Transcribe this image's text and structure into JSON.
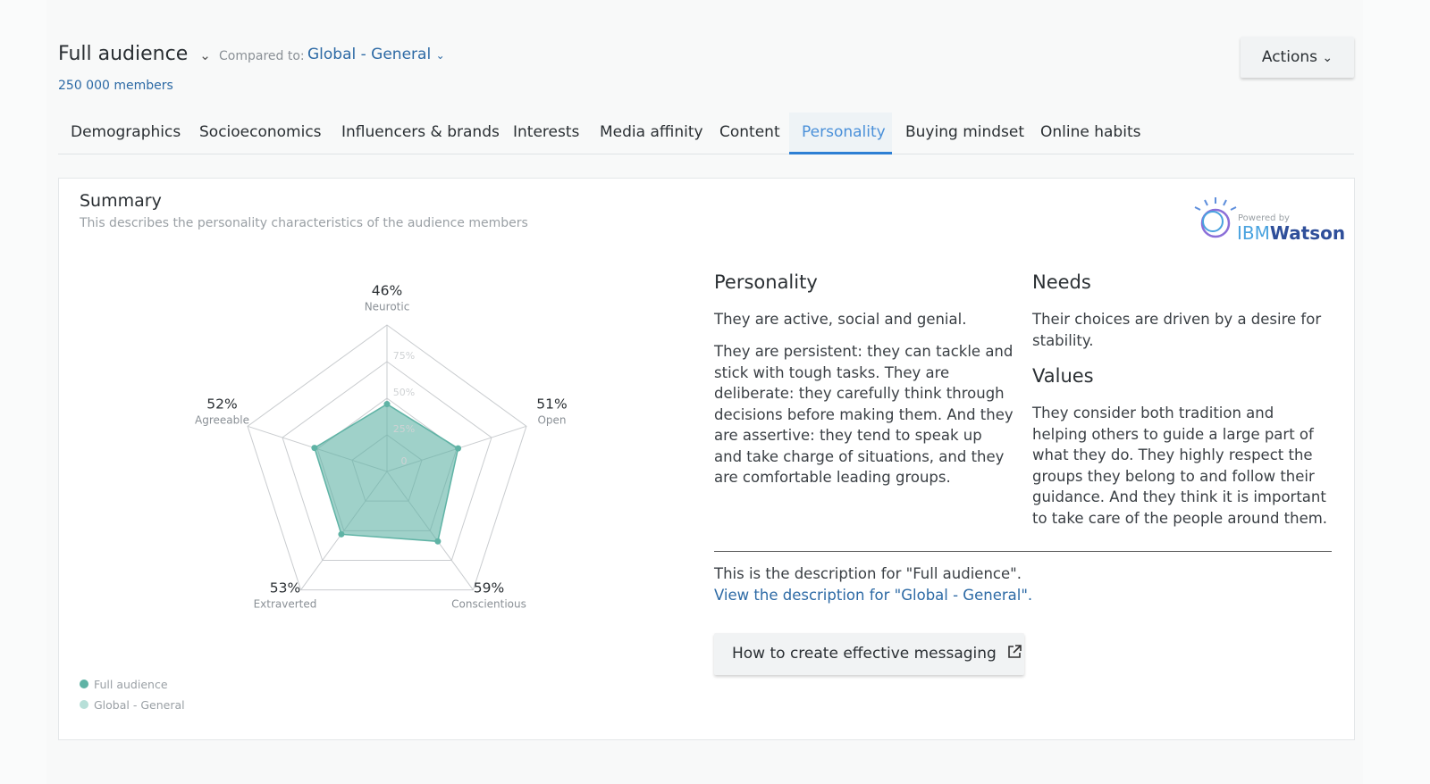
{
  "header": {
    "audience": "Full audience",
    "compared_label": "Compared to:",
    "compared_value": "Global - General",
    "members": "250 000 members",
    "actions": "Actions"
  },
  "tabs": {
    "items": [
      "Demographics",
      "Socioeconomics",
      "Influencers & brands",
      "Interests",
      "Media affinity",
      "Content",
      "Personality",
      "Buying mindset",
      "Online habits"
    ],
    "active": 6
  },
  "summary": {
    "title": "Summary",
    "subtitle": "This describes the personality characteristics of the audience members",
    "powered_by": "Powered by",
    "brand_ibm": "IBM",
    "brand_watson": "Watson"
  },
  "chart_data": {
    "type": "radar",
    "categories": [
      "Neurotic",
      "Open",
      "Conscientious",
      "Extraverted",
      "Agreeable"
    ],
    "series": [
      {
        "name": "Full audience",
        "color": "#5fb3a5",
        "values": [
          46,
          51,
          59,
          53,
          52
        ],
        "value_labels": [
          "46%",
          "51%",
          "59%",
          "53%",
          "52%"
        ]
      },
      {
        "name": "Global - General",
        "color": "#b7dfd8",
        "values": [
          null,
          null,
          null,
          null,
          null
        ]
      }
    ],
    "rlim": [
      0,
      100
    ],
    "rticks": [
      0,
      {
        "value": 25,
        "label": "25%"
      },
      {
        "value": 50,
        "label": "50%"
      },
      {
        "value": 75,
        "label": "75%"
      }
    ],
    "grid": true
  },
  "description": {
    "personality_title": "Personality",
    "personality_text": [
      "They are active, social and genial.",
      "They are persistent: they can tackle and stick with tough tasks. They are deliberate: they carefully think through decisions before making them. And they are assertive: they tend to speak up and take charge of situations, and they are comfortable leading groups."
    ],
    "needs_title": "Needs",
    "needs_text": "Their choices are driven by a desire for stability.",
    "values_title": "Values",
    "values_text": "They consider both tradition and helping others to guide a large part of what they do. They highly respect the groups they belong to and follow their guidance. And they think it is important to take care of the people around them.",
    "note": "This is the description for \"Full audience\".",
    "link": "View the description for \"Global - General\".",
    "button": "How to create effective messaging"
  }
}
